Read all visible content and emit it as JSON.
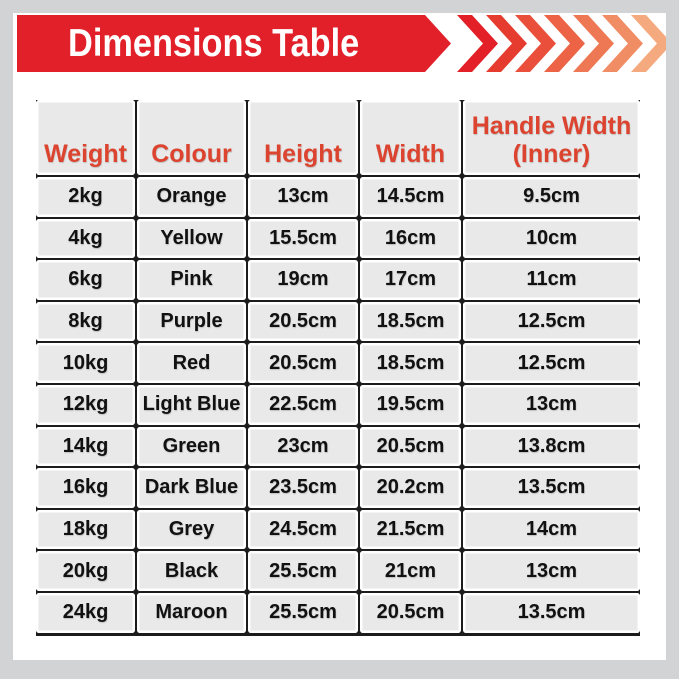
{
  "colors": {
    "page_bg": "#d2d3d5",
    "card_bg": "#ffffff",
    "banner_red": "#e2202a",
    "title_text": "#ffffff",
    "header_text": "#dc4430",
    "cell_bg": "#e9e9e9",
    "cell_text": "#111111",
    "grid": "#1c1c1c"
  },
  "banner": {
    "title": "Dimensions Table",
    "chevron_colors": [
      "#e32028",
      "#e63b2f",
      "#e94f3a",
      "#ec6346",
      "#ee7854",
      "#f18d65",
      "#f4a97e"
    ]
  },
  "chart_data": {
    "type": "table",
    "title": "Dimensions Table",
    "columns": [
      "Weight",
      "Colour",
      "Height",
      "Width",
      "Handle Width (Inner)"
    ],
    "rows": [
      [
        "2kg",
        "Orange",
        "13cm",
        "14.5cm",
        "9.5cm"
      ],
      [
        "4kg",
        "Yellow",
        "15.5cm",
        "16cm",
        "10cm"
      ],
      [
        "6kg",
        "Pink",
        "19cm",
        "17cm",
        "11cm"
      ],
      [
        "8kg",
        "Purple",
        "20.5cm",
        "18.5cm",
        "12.5cm"
      ],
      [
        "10kg",
        "Red",
        "20.5cm",
        "18.5cm",
        "12.5cm"
      ],
      [
        "12kg",
        "Light Blue",
        "22.5cm",
        "19.5cm",
        "13cm"
      ],
      [
        "14kg",
        "Green",
        "23cm",
        "20.5cm",
        "13.8cm"
      ],
      [
        "16kg",
        "Dark Blue",
        "23.5cm",
        "20.2cm",
        "13.5cm"
      ],
      [
        "18kg",
        "Grey",
        "24.5cm",
        "21.5cm",
        "14cm"
      ],
      [
        "20kg",
        "Black",
        "25.5cm",
        "21cm",
        "13cm"
      ],
      [
        "24kg",
        "Maroon",
        "25.5cm",
        "20.5cm",
        "13.5cm"
      ]
    ]
  }
}
